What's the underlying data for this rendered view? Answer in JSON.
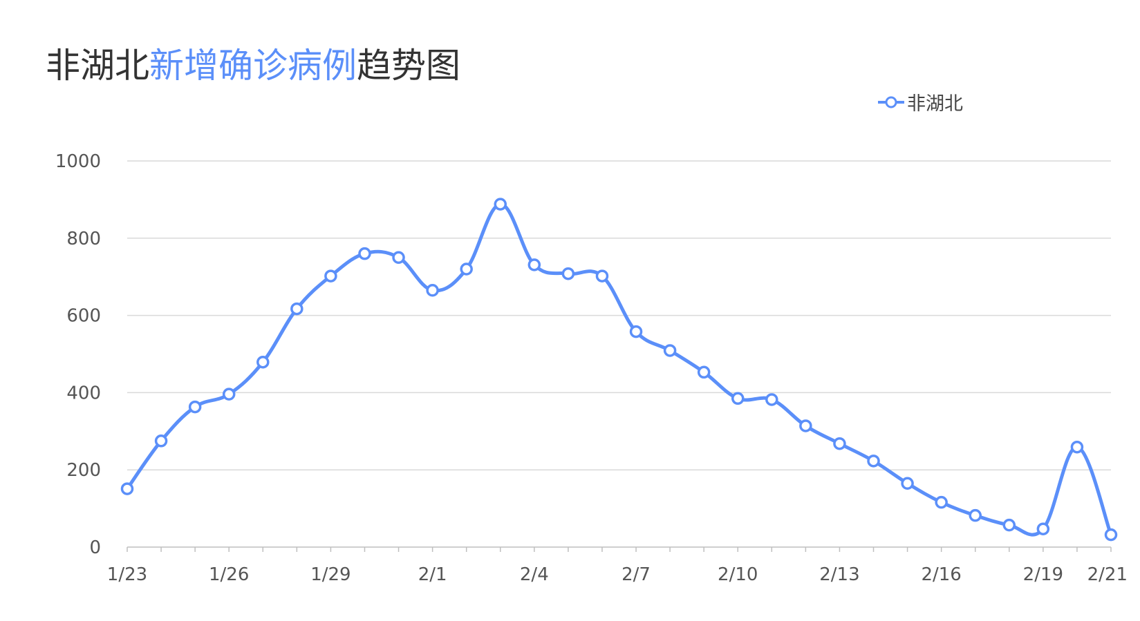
{
  "title": {
    "part1": "非湖北",
    "part2": "新增确诊病例",
    "part3": "趋势图"
  },
  "colors": {
    "series": "#5b8ff9",
    "grid": "#d9d9d9",
    "text": "#333333"
  },
  "chart_data": {
    "type": "line",
    "title": "非湖北新增确诊病例趋势图",
    "xlabel": "",
    "ylabel": "",
    "ylim": [
      0,
      1000
    ],
    "yticks": [
      "0",
      "200",
      "400",
      "600",
      "800",
      "1000"
    ],
    "x": [
      "1/23",
      "1/24",
      "1/25",
      "1/26",
      "1/27",
      "1/28",
      "1/29",
      "1/30",
      "1/31",
      "2/1",
      "2/2",
      "2/3",
      "2/4",
      "2/5",
      "2/6",
      "2/7",
      "2/8",
      "2/9",
      "2/10",
      "2/11",
      "2/12",
      "2/13",
      "2/14",
      "2/15",
      "2/16",
      "2/17",
      "2/18",
      "2/19",
      "2/20",
      "2/21"
    ],
    "xtick_labels": [
      "1/23",
      "1/26",
      "1/29",
      "2/1",
      "2/4",
      "2/7",
      "2/10",
      "2/13",
      "2/16",
      "2/19",
      "2/21"
    ],
    "grid": true,
    "legend": "top-right",
    "series": [
      {
        "name": "非湖北",
        "values": [
          151,
          275,
          363,
          396,
          479,
          617,
          702,
          760,
          750,
          665,
          720,
          888,
          731,
          708,
          702,
          558,
          509,
          453,
          385,
          382,
          314,
          268,
          223,
          165,
          116,
          82,
          57,
          47,
          259,
          32
        ]
      }
    ]
  }
}
